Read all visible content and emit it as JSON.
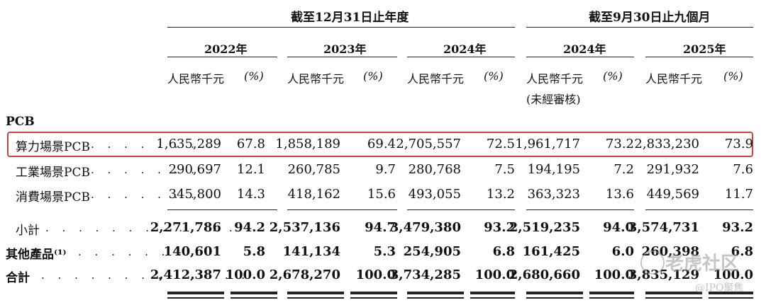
{
  "header": {
    "period_annual": "截至12月31日止年度",
    "period_nine_months": "截至9月30日止九個月",
    "years": [
      "2022年",
      "2023年",
      "2024年",
      "2024年",
      "2025年"
    ],
    "unit_amount": "人民幣千元",
    "unit_pct": "(%)",
    "unaudited_note": "(未經審核)"
  },
  "section_label": "PCB",
  "rows": [
    {
      "label": "算力場景PCB",
      "dots": ". . . . . . . .",
      "values": [
        "1,635,289",
        "67.8",
        "1,858,189",
        "69.4",
        "2,705,557",
        "72.5",
        "1,961,717",
        "73.2",
        "2,833,230",
        "73.9"
      ]
    },
    {
      "label": "工業場景PCB",
      "dots": ". . . . . . . .",
      "values": [
        "290,697",
        "12.1",
        "260,785",
        "9.7",
        "280,768",
        "7.5",
        "194,195",
        "7.2",
        "291,932",
        "7.6"
      ]
    },
    {
      "label": "消費場景PCB",
      "dots": ". . . . . . . .",
      "values": [
        "345,800",
        "14.3",
        "418,162",
        "15.6",
        "493,055",
        "13.2",
        "363,323",
        "13.6",
        "449,569",
        "11.7"
      ]
    },
    {
      "label": "小計",
      "dots": ". . . . . . . . . . . .",
      "values": [
        "2,271,786",
        "94.2",
        "2,537,136",
        "94.7",
        "3,479,380",
        "93.2",
        "2,519,235",
        "94.0",
        "3,574,731",
        "93.2"
      ]
    },
    {
      "label": "其他產品⁽¹⁾",
      "dots": ". . . . . . . .",
      "values": [
        "140,601",
        "5.8",
        "141,134",
        "5.3",
        "254,905",
        "6.8",
        "161,425",
        "6.0",
        "260,398",
        "6.8"
      ]
    },
    {
      "label": "合計",
      "dots": ". . . . . . . . . . . . .",
      "values": [
        "2,412,387",
        "100.0",
        "2,678,270",
        "100.0",
        "3,734,285",
        "100.0",
        "2,680,660",
        "100.0",
        "3,835,129",
        "100.0"
      ]
    }
  ],
  "watermark": {
    "logo_text": "老虎社区",
    "sub_text": "@IPO聚焦"
  },
  "colors": {
    "highlight_border": "#d0403f",
    "text": "#111111"
  }
}
